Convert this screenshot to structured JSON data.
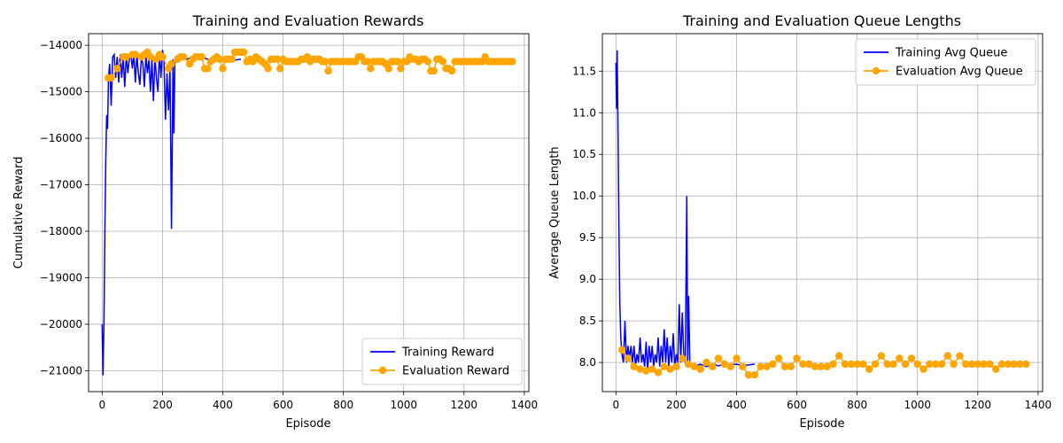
{
  "chart_data": [
    {
      "type": "line",
      "title": "Training and Evaluation Rewards",
      "xlabel": "Episode",
      "ylabel": "Cumulative Reward",
      "xlim": [
        -45,
        1415
      ],
      "ylim": [
        -21450,
        -13750
      ],
      "xticks": [
        0,
        200,
        400,
        600,
        800,
        1000,
        1200,
        1400
      ],
      "xtick_labels": [
        "0",
        "200",
        "400",
        "600",
        "800",
        "1000",
        "1200",
        "1400"
      ],
      "yticks": [
        -21000,
        -20000,
        -19000,
        -18000,
        -17000,
        -16000,
        -15000,
        -14000
      ],
      "ytick_labels": [
        "−21000",
        "−20000",
        "−19000",
        "−18000",
        "−17000",
        "−16000",
        "−15000",
        "−14000"
      ],
      "grid": true,
      "legend_position": "lower-right",
      "series": [
        {
          "name": "Training Reward",
          "color": "#0000ff",
          "marker": "none",
          "x": [
            0,
            3,
            6,
            9,
            12,
            15,
            18,
            21,
            25,
            30,
            35,
            40,
            45,
            50,
            55,
            60,
            65,
            70,
            75,
            80,
            85,
            90,
            95,
            100,
            105,
            110,
            115,
            120,
            125,
            130,
            135,
            140,
            145,
            150,
            155,
            160,
            165,
            170,
            175,
            180,
            185,
            190,
            195,
            200,
            205,
            210,
            215,
            220,
            225,
            230,
            235,
            238,
            241,
            245,
            250,
            255,
            260,
            270,
            280,
            300,
            320,
            340,
            360,
            380,
            400,
            420,
            440,
            460
          ],
          "y": [
            -20000,
            -21100,
            -19900,
            -18000,
            -16500,
            -15500,
            -15800,
            -14700,
            -14400,
            -15300,
            -14250,
            -14200,
            -14700,
            -14250,
            -14800,
            -14200,
            -14700,
            -14250,
            -14900,
            -14200,
            -14600,
            -14300,
            -14150,
            -14500,
            -14200,
            -14800,
            -14200,
            -14600,
            -14850,
            -14250,
            -14400,
            -14900,
            -14200,
            -14600,
            -14300,
            -15000,
            -14300,
            -15200,
            -14250,
            -14700,
            -15000,
            -14150,
            -14700,
            -14100,
            -14300,
            -15600,
            -14600,
            -15400,
            -14500,
            -17950,
            -14300,
            -15900,
            -14400,
            -14250,
            -14300,
            -14250,
            -14300,
            -14280,
            -14300,
            -14250,
            -14300,
            -14280,
            -14320,
            -14300,
            -14280,
            -14300,
            -14320,
            -14300
          ]
        },
        {
          "name": "Evaluation Reward",
          "color": "#ffa500",
          "marker": "circle",
          "x": [
            20,
            30,
            50,
            70,
            80,
            100,
            110,
            130,
            140,
            150,
            160,
            180,
            190,
            200,
            220,
            230,
            250,
            260,
            270,
            290,
            300,
            310,
            320,
            330,
            340,
            350,
            360,
            370,
            380,
            390,
            400,
            410,
            420,
            430,
            440,
            450,
            460,
            470,
            480,
            490,
            500,
            510,
            520,
            530,
            540,
            550,
            560,
            570,
            580,
            590,
            600,
            610,
            620,
            630,
            640,
            650,
            660,
            670,
            680,
            690,
            700,
            710,
            720,
            730,
            740,
            750,
            760,
            770,
            780,
            790,
            800,
            810,
            820,
            830,
            840,
            850,
            860,
            870,
            880,
            890,
            900,
            910,
            920,
            930,
            940,
            950,
            960,
            970,
            980,
            990,
            1000,
            1010,
            1020,
            1030,
            1040,
            1050,
            1060,
            1070,
            1080,
            1090,
            1100,
            1110,
            1120,
            1130,
            1140,
            1150,
            1160,
            1170,
            1180,
            1190,
            1200,
            1210,
            1220,
            1230,
            1240,
            1250,
            1260,
            1270,
            1280,
            1290,
            1300,
            1310,
            1320,
            1330,
            1340,
            1350,
            1360
          ],
          "y": [
            -14700,
            -14700,
            -14500,
            -14250,
            -14250,
            -14200,
            -14200,
            -14250,
            -14200,
            -14150,
            -14250,
            -14300,
            -14200,
            -14250,
            -14500,
            -14400,
            -14300,
            -14250,
            -14250,
            -14400,
            -14300,
            -14250,
            -14250,
            -14250,
            -14500,
            -14500,
            -14350,
            -14300,
            -14250,
            -14300,
            -14500,
            -14300,
            -14300,
            -14300,
            -14150,
            -14150,
            -14150,
            -14150,
            -14350,
            -14300,
            -14350,
            -14250,
            -14300,
            -14350,
            -14400,
            -14500,
            -14300,
            -14300,
            -14300,
            -14500,
            -14300,
            -14350,
            -14350,
            -14350,
            -14350,
            -14350,
            -14300,
            -14300,
            -14250,
            -14350,
            -14300,
            -14300,
            -14300,
            -14350,
            -14350,
            -14550,
            -14350,
            -14350,
            -14350,
            -14350,
            -14350,
            -14350,
            -14350,
            -14350,
            -14350,
            -14250,
            -14250,
            -14350,
            -14350,
            -14500,
            -14350,
            -14350,
            -14350,
            -14350,
            -14400,
            -14500,
            -14350,
            -14350,
            -14350,
            -14500,
            -14350,
            -14350,
            -14250,
            -14300,
            -14300,
            -14350,
            -14300,
            -14300,
            -14350,
            -14550,
            -14550,
            -14300,
            -14300,
            -14350,
            -14500,
            -14500,
            -14550,
            -14350,
            -14350,
            -14350,
            -14350,
            -14350,
            -14350,
            -14350,
            -14350,
            -14350,
            -14350,
            -14250,
            -14350,
            -14350,
            -14350,
            -14350,
            -14350,
            -14350,
            -14350,
            -14350,
            -14350
          ]
        }
      ]
    },
    {
      "type": "line",
      "title": "Training and Evaluation Queue Lengths",
      "xlabel": "Episode",
      "ylabel": "Average Queue Length",
      "xlim": [
        -45,
        1415
      ],
      "ylim": [
        7.65,
        11.95
      ],
      "xticks": [
        0,
        200,
        400,
        600,
        800,
        1000,
        1200,
        1400
      ],
      "xtick_labels": [
        "0",
        "200",
        "400",
        "600",
        "800",
        "1000",
        "1200",
        "1400"
      ],
      "yticks": [
        8.0,
        8.5,
        9.0,
        9.5,
        10.0,
        10.5,
        11.0,
        11.5
      ],
      "ytick_labels": [
        "8.0",
        "8.5",
        "9.0",
        "9.5",
        "10.0",
        "10.5",
        "11.0",
        "11.5"
      ],
      "grid": true,
      "legend_position": "upper-right",
      "series": [
        {
          "name": "Training Avg Queue",
          "color": "#0000ff",
          "marker": "none",
          "x": [
            0,
            2,
            4,
            6,
            8,
            10,
            13,
            16,
            20,
            25,
            30,
            35,
            40,
            45,
            50,
            55,
            60,
            65,
            70,
            75,
            80,
            85,
            90,
            95,
            100,
            105,
            110,
            115,
            120,
            125,
            130,
            135,
            140,
            145,
            150,
            155,
            160,
            165,
            170,
            175,
            180,
            185,
            190,
            195,
            200,
            205,
            210,
            215,
            220,
            225,
            230,
            235,
            238,
            241,
            245,
            250,
            260,
            280,
            300,
            320,
            340,
            360,
            380,
            400,
            420,
            440,
            460
          ],
          "y": [
            11.6,
            11.05,
            11.75,
            11.05,
            10.4,
            9.6,
            8.7,
            8.3,
            8.1,
            8.0,
            8.5,
            8.0,
            8.2,
            8.05,
            8.2,
            8.0,
            8.2,
            7.95,
            8.1,
            8.0,
            8.3,
            8.0,
            8.1,
            7.95,
            8.25,
            7.9,
            8.2,
            8.0,
            8.2,
            7.95,
            8.1,
            8.0,
            8.3,
            7.95,
            8.2,
            8.0,
            8.4,
            8.0,
            8.3,
            7.95,
            8.2,
            8.0,
            8.35,
            7.95,
            8.1,
            8.0,
            8.7,
            8.0,
            8.6,
            8.1,
            8.0,
            10.0,
            8.0,
            8.8,
            8.0,
            7.98,
            7.95,
            7.98,
            7.95,
            7.98,
            7.96,
            7.98,
            7.97,
            7.98,
            7.96,
            7.97,
            7.98
          ]
        },
        {
          "name": "Evaluation Avg Queue",
          "color": "#ffa500",
          "marker": "circle",
          "x": [
            20,
            40,
            60,
            80,
            100,
            120,
            140,
            160,
            180,
            200,
            220,
            240,
            260,
            280,
            300,
            320,
            340,
            360,
            380,
            400,
            420,
            440,
            460,
            480,
            500,
            520,
            540,
            560,
            580,
            600,
            620,
            640,
            660,
            680,
            700,
            720,
            740,
            760,
            780,
            800,
            820,
            840,
            860,
            880,
            900,
            920,
            940,
            960,
            980,
            1000,
            1020,
            1040,
            1060,
            1080,
            1100,
            1120,
            1140,
            1160,
            1180,
            1200,
            1220,
            1240,
            1260,
            1280,
            1300,
            1320,
            1340,
            1360
          ],
          "y": [
            8.15,
            8.05,
            7.95,
            7.92,
            7.9,
            7.92,
            7.88,
            7.95,
            7.92,
            7.95,
            8.05,
            7.98,
            7.95,
            7.92,
            8.0,
            7.95,
            8.05,
            7.98,
            7.95,
            8.05,
            7.95,
            7.85,
            7.85,
            7.95,
            7.95,
            7.98,
            8.05,
            7.95,
            7.95,
            8.05,
            7.98,
            7.98,
            7.95,
            7.95,
            7.95,
            7.98,
            8.08,
            7.98,
            7.98,
            7.98,
            7.98,
            7.92,
            7.98,
            8.08,
            7.98,
            7.98,
            8.05,
            7.98,
            8.05,
            7.98,
            7.92,
            7.98,
            7.98,
            7.98,
            8.08,
            7.98,
            8.08,
            7.98,
            7.98,
            7.98,
            7.98,
            7.98,
            7.92,
            7.98,
            7.98,
            7.98,
            7.98,
            7.98
          ]
        }
      ]
    }
  ]
}
